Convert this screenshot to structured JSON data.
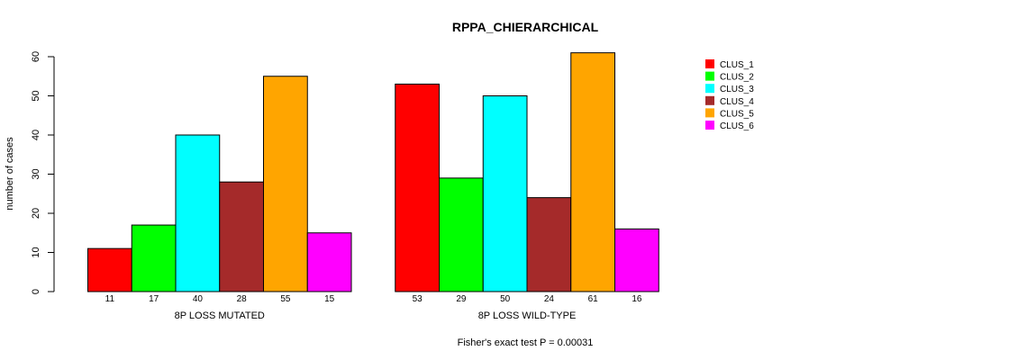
{
  "chart_data": {
    "type": "bar",
    "title": "RPPA_CHIERARCHICAL",
    "ylabel": "number of cases",
    "ylim": [
      0,
      60
    ],
    "yticks": [
      0,
      10,
      20,
      30,
      40,
      50,
      60
    ],
    "clusters": [
      "CLUS_1",
      "CLUS_2",
      "CLUS_3",
      "CLUS_4",
      "CLUS_5",
      "CLUS_6"
    ],
    "colors": [
      "#ff0000",
      "#00ff00",
      "#00ffff",
      "#a52a2a",
      "#ffa500",
      "#ff00ff"
    ],
    "groups": [
      {
        "name": "8P LOSS MUTATED",
        "values": [
          11,
          17,
          40,
          28,
          55,
          15
        ]
      },
      {
        "name": "8P LOSS WILD-TYPE",
        "values": [
          53,
          29,
          50,
          24,
          61,
          16
        ]
      }
    ],
    "legend_position": "top-right",
    "footer": "Fisher's exact test P = 0.00031"
  }
}
